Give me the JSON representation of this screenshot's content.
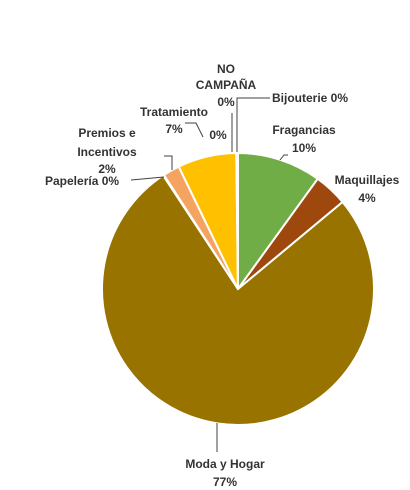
{
  "chart_data": {
    "type": "pie",
    "title": "",
    "slices": [
      {
        "name": "Fragancias",
        "value_label": "10%",
        "value": 10,
        "color": "#70AD47"
      },
      {
        "name": "Maquillajes",
        "value_label": "4%",
        "value": 4,
        "color": "#9E480E"
      },
      {
        "name": "Moda y Hogar",
        "value_label": "77%",
        "value": 77,
        "color": "#997300"
      },
      {
        "name": "Papelería",
        "value_label": "0%",
        "value": 0.1,
        "color": "#A5A5A5"
      },
      {
        "name": "Premios e Incentivos",
        "value_label": "2%",
        "value": 2,
        "color": "#F4A460"
      },
      {
        "name": "Tratamiento",
        "value_label": "7%",
        "value": 7,
        "color": "#FFC000"
      },
      {
        "name": "NO CAMPAÑA",
        "value_label": "0%",
        "value": 0.1,
        "color": "#5B9BD5"
      },
      {
        "name": "Bijouterie",
        "value_label": "0%",
        "value": 0.1,
        "color": "#ED7D31"
      }
    ],
    "labels": {
      "fragancias": {
        "name": "Fragancias",
        "value": "10%"
      },
      "maquillajes": {
        "name": "Maquillajes",
        "value": "4%"
      },
      "moda": {
        "name": "Moda y Hogar",
        "value": "77%"
      },
      "papeleria": {
        "name": "Papelería 0%"
      },
      "premios": {
        "line1": "Premios e",
        "line2": "Incentivos",
        "value": "2%"
      },
      "tratamiento": {
        "name": "Tratamiento",
        "value": "7%"
      },
      "no_campana": {
        "line1": "NO",
        "line2": "CAMPAÑA",
        "value": "0%"
      },
      "extra_zero": {
        "value": "0%"
      },
      "bijouterie": {
        "name": "Bijouterie 0%"
      }
    }
  }
}
